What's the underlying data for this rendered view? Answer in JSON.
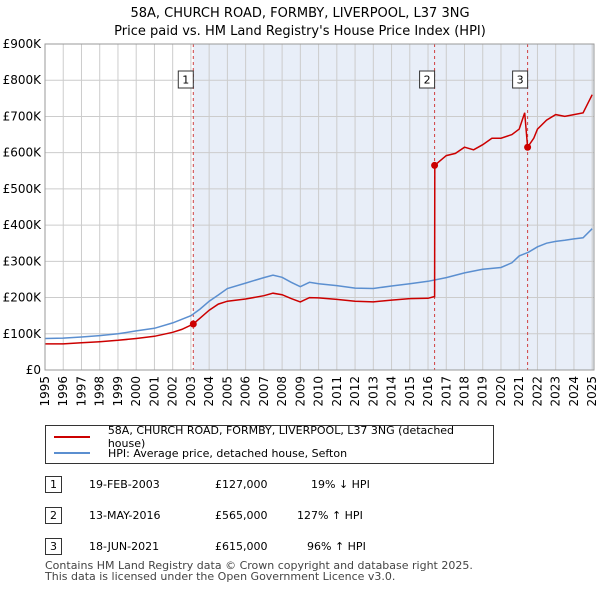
{
  "title": "58A, CHURCH ROAD, FORMBY, LIVERPOOL, L37 3NG",
  "subtitle": "Price paid vs. HM Land Registry's House Price Index (HPI)",
  "colors": {
    "property": "#cc0000",
    "hpi": "#5b8fd0",
    "band": "#e8eef8",
    "grid": "#cccccc"
  },
  "chart_data": {
    "type": "line",
    "ylim": [
      0,
      900000
    ],
    "xlim": [
      1995,
      2025.1
    ],
    "y_ticks": [
      0,
      100000,
      200000,
      300000,
      400000,
      500000,
      600000,
      700000,
      800000,
      900000
    ],
    "y_tick_labels": [
      "£0",
      "£100K",
      "£200K",
      "£300K",
      "£400K",
      "£500K",
      "£600K",
      "£700K",
      "£800K",
      "£900K"
    ],
    "x_ticks": [
      1995,
      1996,
      1997,
      1998,
      1999,
      2000,
      2001,
      2002,
      2003,
      2004,
      2005,
      2006,
      2007,
      2008,
      2009,
      2010,
      2011,
      2012,
      2013,
      2014,
      2015,
      2016,
      2017,
      2018,
      2019,
      2020,
      2021,
      2022,
      2023,
      2024,
      2025
    ],
    "x_tick_labels": [
      "1995",
      "1996",
      "1997",
      "1998",
      "1999",
      "2000",
      "2001",
      "2002",
      "2003",
      "2004",
      "2005",
      "2006",
      "2007",
      "2008",
      "2009",
      "2010",
      "2011",
      "2012",
      "2013",
      "2014",
      "2015",
      "2016",
      "2017",
      "2018",
      "2019",
      "2020",
      "2021",
      "2022",
      "2023",
      "2024",
      "2025"
    ],
    "shaded_periods": [
      [
        2003.13,
        2025.1
      ]
    ],
    "series": [
      {
        "name": "58A, CHURCH ROAD, FORMBY, LIVERPOOL, L37 3NG (detached house)",
        "color": "#cc0000",
        "x": [
          1995,
          1996,
          1997,
          1998,
          1999,
          2000,
          2001,
          2002,
          2002.5,
          2003.13,
          2003.5,
          2004,
          2004.5,
          2005,
          2006,
          2007,
          2007.5,
          2008,
          2008.5,
          2009,
          2009.5,
          2010,
          2011,
          2012,
          2013,
          2014,
          2015,
          2016,
          2016.36,
          2016.37,
          2016.6,
          2017,
          2017.5,
          2018,
          2018.5,
          2019,
          2019.5,
          2020,
          2020.6,
          2021,
          2021.3,
          2021.46,
          2021.8,
          2022,
          2022.5,
          2023,
          2023.5,
          2024,
          2024.5,
          2025
        ],
        "y": [
          72000,
          72000,
          75000,
          78000,
          82000,
          87000,
          93000,
          104000,
          112000,
          127000,
          143000,
          165000,
          182000,
          190000,
          196000,
          205000,
          212000,
          208000,
          197000,
          188000,
          200000,
          199000,
          195000,
          190000,
          188000,
          193000,
          197000,
          198000,
          203000,
          565000,
          575000,
          592000,
          598000,
          615000,
          608000,
          622000,
          640000,
          640000,
          650000,
          665000,
          710000,
          615000,
          640000,
          665000,
          690000,
          705000,
          700000,
          705000,
          710000,
          760000
        ]
      },
      {
        "name": "HPI: Average price, detached house, Sefton",
        "color": "#5b8fd0",
        "x": [
          1995,
          1996,
          1997,
          1998,
          1999,
          2000,
          2001,
          2002,
          2002.5,
          2003,
          2003.5,
          2004,
          2004.5,
          2005,
          2006,
          2007,
          2007.5,
          2008,
          2008.5,
          2009,
          2009.5,
          2010,
          2011,
          2012,
          2013,
          2014,
          2015,
          2016,
          2017,
          2018,
          2019,
          2020,
          2020.6,
          2021,
          2021.5,
          2022,
          2022.5,
          2023,
          2023.5,
          2024,
          2024.5,
          2025
        ],
        "y": [
          87000,
          88000,
          91000,
          95000,
          100000,
          108000,
          115000,
          130000,
          140000,
          150000,
          168000,
          190000,
          207000,
          225000,
          240000,
          255000,
          262000,
          256000,
          242000,
          230000,
          242000,
          238000,
          233000,
          226000,
          225000,
          232000,
          238000,
          245000,
          255000,
          268000,
          278000,
          283000,
          296000,
          315000,
          325000,
          340000,
          350000,
          355000,
          358000,
          362000,
          365000,
          390000
        ]
      }
    ],
    "sales": [
      {
        "num": "1",
        "x": 2003.13,
        "y": 127000,
        "date": "19-FEB-2003",
        "price": "£127,000",
        "hpi": "19% ↓ HPI"
      },
      {
        "num": "2",
        "x": 2016.36,
        "y": 565000,
        "date": "13-MAY-2016",
        "price": "£565,000",
        "hpi": "127% ↑ HPI"
      },
      {
        "num": "3",
        "x": 2021.46,
        "y": 615000,
        "date": "18-JUN-2021",
        "price": "£615,000",
        "hpi": "96% ↑ HPI"
      }
    ]
  },
  "legend": {
    "property": "58A, CHURCH ROAD, FORMBY, LIVERPOOL, L37 3NG (detached house)",
    "hpi": "HPI: Average price, detached house, Sefton"
  },
  "footer": {
    "line1": "Contains HM Land Registry data © Crown copyright and database right 2025.",
    "line2": "This data is licensed under the Open Government Licence v3.0."
  }
}
